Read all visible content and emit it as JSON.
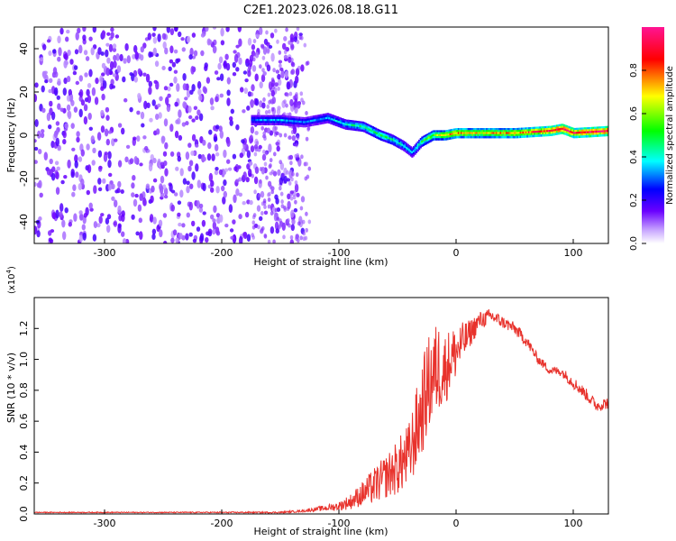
{
  "title": "C2E1.2023.026.08.18.G11",
  "chart_data": [
    {
      "type": "heatmap",
      "title": "",
      "xlabel": "Height of straight line (km)",
      "ylabel": "Frequency (Hz)",
      "xlim": [
        -360,
        130
      ],
      "ylim": [
        -50,
        50
      ],
      "x_ticks": [
        -300,
        -200,
        -100,
        0,
        100
      ],
      "y_ticks": [
        -40,
        -20,
        0,
        20,
        40
      ],
      "colorbar": {
        "label": "Normalized spectral amplitude",
        "range": [
          0,
          1
        ],
        "ticks": [
          0.0,
          0.2,
          0.4,
          0.6,
          0.8
        ],
        "colors": [
          "#ffffff",
          "#b98cff",
          "#6a00ff",
          "#0000ff",
          "#00ffff",
          "#00ff00",
          "#ffff00",
          "#ff0000",
          "#ff1493"
        ]
      },
      "signal_track": {
        "x": [
          -175,
          -150,
          -130,
          -110,
          -95,
          -80,
          -65,
          -55,
          -45,
          -38,
          -30,
          -20,
          -10,
          0,
          20,
          50,
          80,
          90,
          100,
          130
        ],
        "freq": [
          7,
          7,
          6,
          8,
          5,
          4,
          0,
          -2,
          -5,
          -8,
          -3,
          0,
          0,
          1,
          1,
          1,
          2,
          3,
          1,
          2
        ],
        "amplitude": [
          0.3,
          0.35,
          0.3,
          0.35,
          0.4,
          0.45,
          0.5,
          0.45,
          0.4,
          0.35,
          0.5,
          0.6,
          0.7,
          0.75,
          0.7,
          0.75,
          0.9,
          0.95,
          0.9,
          0.95
        ]
      },
      "noise_region": {
        "x_range": [
          -360,
          -130
        ],
        "amplitude": 0.12
      }
    },
    {
      "type": "line",
      "title": "",
      "xlabel": "Height of straight line (km)",
      "ylabel": "SNR (10 * v/v)",
      "y_multiplier": "(x10^4)",
      "y_multiplier_base": "(x10",
      "y_multiplier_exp": "4",
      "y_multiplier_close": ")",
      "xlim": [
        -360,
        130
      ],
      "ylim": [
        0,
        1.4
      ],
      "x_ticks": [
        -300,
        -200,
        -100,
        0,
        100
      ],
      "y_ticks": [
        0.0,
        0.2,
        0.4,
        0.6,
        0.8,
        1.0,
        1.2
      ],
      "color": "#e8322c",
      "series": [
        {
          "x": [
            -360,
            -300,
            -250,
            -200,
            -150,
            -130,
            -110,
            -100,
            -90,
            -80,
            -70,
            -60,
            -50,
            -40,
            -30,
            -25,
            -20,
            -15,
            -10,
            -5,
            0,
            10,
            20,
            30,
            40,
            50,
            60,
            70,
            80,
            90,
            100,
            110,
            120,
            130
          ],
          "values": [
            0.01,
            0.01,
            0.01,
            0.01,
            0.01,
            0.02,
            0.04,
            0.05,
            0.08,
            0.13,
            0.18,
            0.24,
            0.3,
            0.38,
            0.65,
            0.8,
            0.9,
            0.95,
            0.93,
            1.0,
            1.05,
            1.15,
            1.25,
            1.28,
            1.24,
            1.2,
            1.12,
            1.0,
            0.93,
            0.92,
            0.85,
            0.78,
            0.7,
            0.72
          ],
          "noise": [
            0.003,
            0.003,
            0.003,
            0.004,
            0.005,
            0.008,
            0.02,
            0.03,
            0.05,
            0.08,
            0.12,
            0.14,
            0.18,
            0.22,
            0.3,
            0.32,
            0.32,
            0.3,
            0.25,
            0.2,
            0.18,
            0.1,
            0.06,
            0.05,
            0.04,
            0.04,
            0.04,
            0.03,
            0.03,
            0.03,
            0.04,
            0.04,
            0.04,
            0.04
          ]
        }
      ]
    }
  ]
}
